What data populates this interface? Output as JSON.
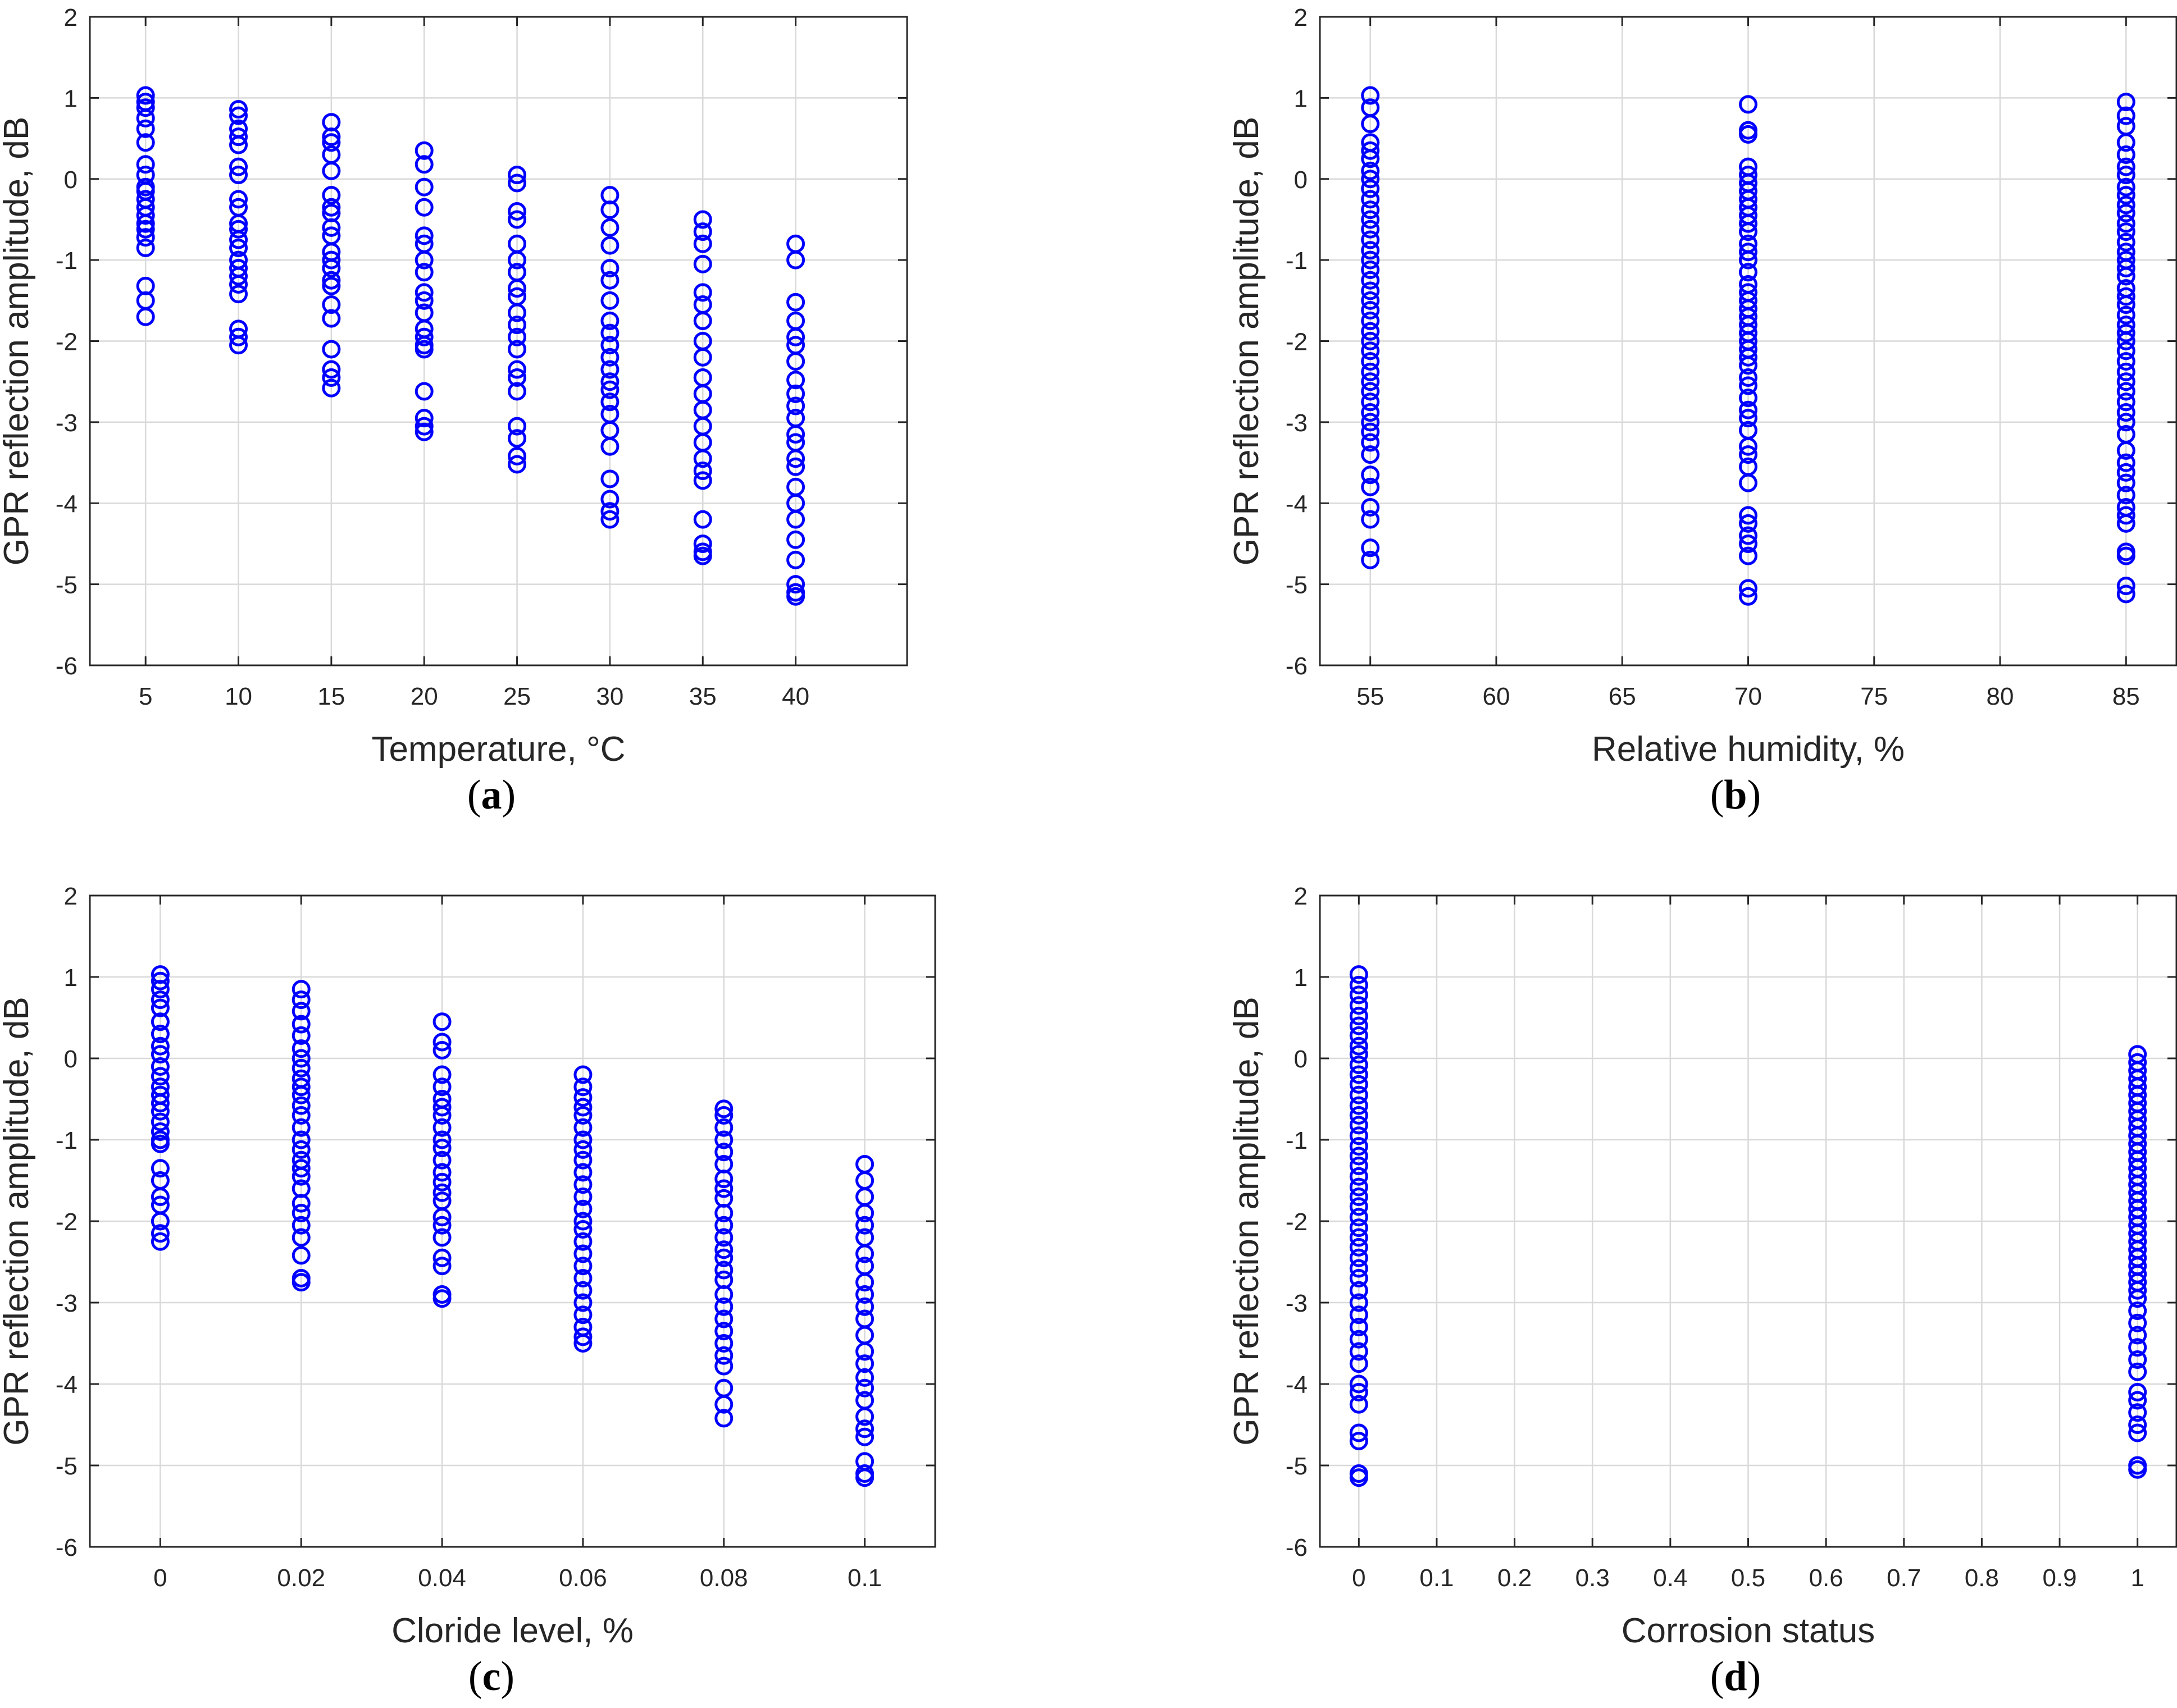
{
  "colors": {
    "marker": "#0000ff",
    "grid": "#d9d9d9",
    "axes": "#262626",
    "background": "#ffffff"
  },
  "chart_data": [
    {
      "id": "a",
      "type": "scatter",
      "panel_label": "a",
      "xlabel": "Temperature, °C",
      "ylabel": "GPR reflection amplitude, dB",
      "xlim": [
        2,
        46
      ],
      "ylim": [
        -6,
        2
      ],
      "xticks": [
        5,
        10,
        15,
        20,
        25,
        30,
        35,
        40
      ],
      "xtick_labels": [
        "5",
        "10",
        "15",
        "20",
        "25",
        "30",
        "35",
        "40"
      ],
      "yticks": [
        -6,
        -5,
        -4,
        -3,
        -2,
        -1,
        0,
        1,
        2
      ],
      "ytick_labels": [
        "-6",
        "-5",
        "-4",
        "-3",
        "-2",
        "-1",
        "0",
        "1",
        "2"
      ],
      "grid": true,
      "series": [
        {
          "x": 5,
          "y": [
            1.03,
            0.95,
            0.88,
            0.75,
            0.62,
            0.45,
            0.18,
            0.05,
            -0.1,
            -0.15,
            -0.25,
            -0.35,
            -0.45,
            -0.55,
            -0.62,
            -0.72,
            -0.85,
            -1.32,
            -1.5,
            -1.7
          ]
        },
        {
          "x": 10,
          "y": [
            0.86,
            0.78,
            0.62,
            0.52,
            0.42,
            0.15,
            0.05,
            -0.25,
            -0.35,
            -0.55,
            -0.62,
            -0.75,
            -0.85,
            -1.0,
            -1.1,
            -1.2,
            -1.3,
            -1.42,
            -1.85,
            -1.95,
            -2.05
          ]
        },
        {
          "x": 15,
          "y": [
            0.7,
            0.52,
            0.45,
            0.3,
            0.1,
            -0.2,
            -0.35,
            -0.42,
            -0.6,
            -0.7,
            -0.9,
            -1.0,
            -1.1,
            -1.25,
            -1.32,
            -1.55,
            -1.72,
            -2.1,
            -2.35,
            -2.45,
            -2.58
          ]
        },
        {
          "x": 20,
          "y": [
            0.35,
            0.18,
            -0.1,
            -0.35,
            -0.7,
            -0.8,
            -1.0,
            -1.15,
            -1.4,
            -1.5,
            -1.65,
            -1.85,
            -1.95,
            -2.05,
            -2.1,
            -2.62,
            -2.95,
            -3.05,
            -3.12
          ]
        },
        {
          "x": 25,
          "y": [
            0.05,
            -0.05,
            -0.4,
            -0.5,
            -0.8,
            -1.0,
            -1.15,
            -1.35,
            -1.45,
            -1.65,
            -1.8,
            -1.95,
            -2.1,
            -2.35,
            -2.45,
            -2.62,
            -3.05,
            -3.2,
            -3.42,
            -3.52
          ]
        },
        {
          "x": 30,
          "y": [
            -0.2,
            -0.38,
            -0.6,
            -0.82,
            -1.1,
            -1.25,
            -1.5,
            -1.75,
            -1.9,
            -2.05,
            -2.2,
            -2.35,
            -2.5,
            -2.6,
            -2.75,
            -2.9,
            -3.1,
            -3.3,
            -3.7,
            -3.95,
            -4.1,
            -4.2
          ]
        },
        {
          "x": 35,
          "y": [
            -0.5,
            -0.65,
            -0.8,
            -1.05,
            -1.4,
            -1.55,
            -1.75,
            -2.0,
            -2.2,
            -2.45,
            -2.65,
            -2.85,
            -3.05,
            -3.25,
            -3.45,
            -3.6,
            -3.72,
            -4.2,
            -4.5,
            -4.6,
            -4.65
          ]
        },
        {
          "x": 40,
          "y": [
            -0.8,
            -1.0,
            -1.52,
            -1.75,
            -1.95,
            -2.05,
            -2.25,
            -2.48,
            -2.65,
            -2.8,
            -2.95,
            -3.15,
            -3.25,
            -3.45,
            -3.55,
            -3.8,
            -4.0,
            -4.2,
            -4.45,
            -4.7,
            -5.0,
            -5.1,
            -5.15
          ]
        }
      ]
    },
    {
      "id": "b",
      "type": "scatter",
      "panel_label": "b",
      "xlabel": "Relative humidity, %",
      "ylabel": "GPR reflection amplitude, dB",
      "xlim": [
        53,
        87
      ],
      "ylim": [
        -6,
        2
      ],
      "xticks": [
        55,
        60,
        65,
        70,
        75,
        80,
        85
      ],
      "xtick_labels": [
        "55",
        "60",
        "65",
        "70",
        "75",
        "80",
        "85"
      ],
      "yticks": [
        -6,
        -5,
        -4,
        -3,
        -2,
        -1,
        0,
        1,
        2
      ],
      "ytick_labels": [
        "-6",
        "-5",
        "-4",
        "-3",
        "-2",
        "-1",
        "0",
        "1",
        "2"
      ],
      "grid": true,
      "series": [
        {
          "x": 55,
          "y": [
            1.03,
            0.88,
            0.68,
            0.45,
            0.35,
            0.25,
            0.1,
            0.0,
            -0.12,
            -0.25,
            -0.38,
            -0.5,
            -0.62,
            -0.75,
            -0.88,
            -1.0,
            -1.12,
            -1.25,
            -1.38,
            -1.5,
            -1.62,
            -1.75,
            -1.88,
            -2.0,
            -2.12,
            -2.25,
            -2.38,
            -2.5,
            -2.62,
            -2.75,
            -2.88,
            -3.0,
            -3.12,
            -3.25,
            -3.4,
            -3.65,
            -3.8,
            -4.05,
            -4.2,
            -4.55,
            -4.7
          ]
        },
        {
          "x": 70,
          "y": [
            0.92,
            0.6,
            0.55,
            0.15,
            0.05,
            -0.05,
            -0.15,
            -0.25,
            -0.35,
            -0.45,
            -0.55,
            -0.65,
            -0.8,
            -0.9,
            -1.0,
            -1.15,
            -1.3,
            -1.4,
            -1.5,
            -1.6,
            -1.7,
            -1.8,
            -1.9,
            -2.0,
            -2.1,
            -2.2,
            -2.3,
            -2.45,
            -2.55,
            -2.7,
            -2.85,
            -2.95,
            -3.1,
            -3.3,
            -3.4,
            -3.55,
            -3.75,
            -4.15,
            -4.25,
            -4.4,
            -4.5,
            -4.65,
            -5.05,
            -5.15
          ]
        },
        {
          "x": 85,
          "y": [
            0.95,
            0.78,
            0.65,
            0.45,
            0.3,
            0.15,
            0.05,
            -0.1,
            -0.2,
            -0.32,
            -0.42,
            -0.55,
            -0.65,
            -0.78,
            -0.9,
            -1.0,
            -1.1,
            -1.2,
            -1.35,
            -1.45,
            -1.55,
            -1.68,
            -1.8,
            -1.9,
            -2.0,
            -2.12,
            -2.25,
            -2.38,
            -2.5,
            -2.62,
            -2.75,
            -2.88,
            -3.0,
            -3.15,
            -3.35,
            -3.5,
            -3.62,
            -3.75,
            -3.9,
            -4.05,
            -4.15,
            -4.25,
            -4.6,
            -4.65,
            -5.02,
            -5.12
          ]
        }
      ]
    },
    {
      "id": "c",
      "type": "scatter",
      "panel_label": "c",
      "xlabel": "Cloride level, %",
      "ylabel": "GPR reflection amplitude, dB",
      "xlim": [
        -0.01,
        0.11
      ],
      "ylim": [
        -6,
        2
      ],
      "xticks": [
        0,
        0.02,
        0.04,
        0.06,
        0.08,
        0.1
      ],
      "xtick_labels": [
        "0",
        "0.02",
        "0.04",
        "0.06",
        "0.08",
        "0.1"
      ],
      "yticks": [
        -6,
        -5,
        -4,
        -3,
        -2,
        -1,
        0,
        1,
        2
      ],
      "ytick_labels": [
        "-6",
        "-5",
        "-4",
        "-3",
        "-2",
        "-1",
        "0",
        "1",
        "2"
      ],
      "grid": true,
      "series": [
        {
          "x": 0,
          "y": [
            1.03,
            0.95,
            0.85,
            0.72,
            0.62,
            0.45,
            0.3,
            0.15,
            0.05,
            -0.1,
            -0.22,
            -0.35,
            -0.45,
            -0.55,
            -0.65,
            -0.78,
            -0.9,
            -1.0,
            -1.05,
            -1.35,
            -1.5,
            -1.7,
            -1.8,
            -2.0,
            -2.15,
            -2.25
          ]
        },
        {
          "x": 0.02,
          "y": [
            0.85,
            0.72,
            0.58,
            0.42,
            0.28,
            0.12,
            0.0,
            -0.12,
            -0.25,
            -0.35,
            -0.45,
            -0.58,
            -0.7,
            -0.85,
            -1.0,
            -1.12,
            -1.25,
            -1.35,
            -1.45,
            -1.6,
            -1.78,
            -1.9,
            -2.05,
            -2.2,
            -2.42,
            -2.7,
            -2.75
          ]
        },
        {
          "x": 0.04,
          "y": [
            0.45,
            0.2,
            0.1,
            -0.2,
            -0.35,
            -0.5,
            -0.6,
            -0.7,
            -0.85,
            -1.0,
            -1.1,
            -1.25,
            -1.4,
            -1.52,
            -1.65,
            -1.75,
            -1.95,
            -2.05,
            -2.2,
            -2.45,
            -2.55,
            -2.9,
            -2.95
          ]
        },
        {
          "x": 0.06,
          "y": [
            -0.2,
            -0.35,
            -0.48,
            -0.6,
            -0.7,
            -0.85,
            -1.0,
            -1.12,
            -1.25,
            -1.4,
            -1.55,
            -1.7,
            -1.85,
            -2.0,
            -2.1,
            -2.25,
            -2.4,
            -2.55,
            -2.7,
            -2.85,
            -3.0,
            -3.15,
            -3.3,
            -3.42,
            -3.5
          ]
        },
        {
          "x": 0.08,
          "y": [
            -0.62,
            -0.7,
            -0.85,
            -1.0,
            -1.15,
            -1.3,
            -1.48,
            -1.6,
            -1.72,
            -1.9,
            -2.05,
            -2.2,
            -2.35,
            -2.45,
            -2.6,
            -2.72,
            -2.9,
            -3.05,
            -3.2,
            -3.35,
            -3.5,
            -3.65,
            -3.78,
            -4.05,
            -4.25,
            -4.42
          ]
        },
        {
          "x": 0.1,
          "y": [
            -1.3,
            -1.5,
            -1.7,
            -1.9,
            -2.05,
            -2.2,
            -2.4,
            -2.55,
            -2.75,
            -2.9,
            -3.05,
            -3.2,
            -3.4,
            -3.6,
            -3.75,
            -3.92,
            -4.05,
            -4.2,
            -4.4,
            -4.55,
            -4.65,
            -4.95,
            -5.1,
            -5.15
          ]
        }
      ]
    },
    {
      "id": "d",
      "type": "scatter",
      "panel_label": "d",
      "xlabel": "Corrosion status",
      "ylabel": "GPR reflection amplitude, dB",
      "xlim": [
        -0.05,
        1.05
      ],
      "ylim": [
        -6,
        2
      ],
      "xticks": [
        0,
        0.1,
        0.2,
        0.3,
        0.4,
        0.5,
        0.6,
        0.7,
        0.8,
        0.9,
        1
      ],
      "xtick_labels": [
        "0",
        "0.1",
        "0.2",
        "0.3",
        "0.4",
        "0.5",
        "0.6",
        "0.7",
        "0.8",
        "0.9",
        "1"
      ],
      "yticks": [
        -6,
        -5,
        -4,
        -3,
        -2,
        -1,
        0,
        1,
        2
      ],
      "ytick_labels": [
        "-6",
        "-5",
        "-4",
        "-3",
        "-2",
        "-1",
        "0",
        "1",
        "2"
      ],
      "grid": true,
      "series": [
        {
          "x": 0,
          "y": [
            1.03,
            0.9,
            0.78,
            0.65,
            0.52,
            0.4,
            0.28,
            0.15,
            0.05,
            -0.08,
            -0.2,
            -0.32,
            -0.45,
            -0.58,
            -0.7,
            -0.82,
            -0.95,
            -1.08,
            -1.2,
            -1.32,
            -1.45,
            -1.58,
            -1.7,
            -1.82,
            -1.95,
            -2.08,
            -2.2,
            -2.32,
            -2.45,
            -2.58,
            -2.7,
            -2.85,
            -3.0,
            -3.15,
            -3.3,
            -3.45,
            -3.6,
            -3.75,
            -4.0,
            -4.1,
            -4.25,
            -4.6,
            -4.7,
            -5.1,
            -5.15
          ]
        },
        {
          "x": 1,
          "y": [
            0.05,
            -0.05,
            -0.15,
            -0.25,
            -0.35,
            -0.45,
            -0.55,
            -0.65,
            -0.75,
            -0.85,
            -0.95,
            -1.05,
            -1.15,
            -1.25,
            -1.35,
            -1.45,
            -1.55,
            -1.65,
            -1.75,
            -1.85,
            -1.95,
            -2.05,
            -2.15,
            -2.25,
            -2.35,
            -2.45,
            -2.55,
            -2.65,
            -2.75,
            -2.85,
            -2.95,
            -3.1,
            -3.25,
            -3.4,
            -3.55,
            -3.7,
            -3.85,
            -4.1,
            -4.2,
            -4.35,
            -4.5,
            -4.6,
            -5.0,
            -5.05
          ]
        }
      ]
    }
  ]
}
